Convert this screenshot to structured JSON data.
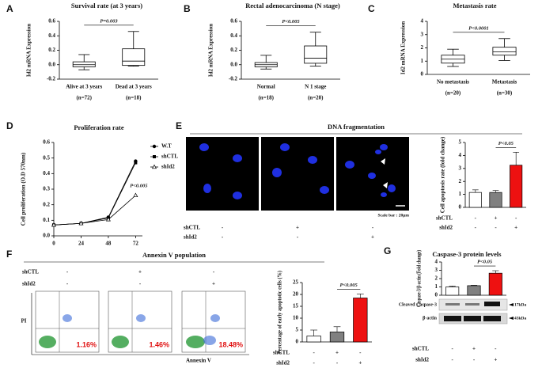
{
  "chart_data": [
    {
      "type": "box",
      "panel": "A",
      "title": "Survival rate (at 3 years)",
      "y_label": "Id2 mRNA Expression",
      "categories": [
        "Alive at 3 years",
        "Dead at 3 years"
      ],
      "group_sizes": [
        "(n=72)",
        "(n=18)"
      ],
      "values": [
        [
          -0.07,
          -0.03,
          0.0,
          0.04,
          0.14
        ],
        [
          -0.02,
          -0.01,
          0.05,
          0.22,
          0.46
        ]
      ],
      "annotation": "P=0.003",
      "ylim": [
        -0.2,
        0.6
      ],
      "yticks": [
        -0.2,
        {
          "value": 0,
          "label": "0.0"
        },
        0.2,
        0.4,
        0.6
      ],
      "color": "#000000"
    },
    {
      "type": "box",
      "panel": "B",
      "title": "Rectal adenocarcinoma (N stage)",
      "y_label": "Id2 mRNA Expression",
      "categories": [
        "Normal",
        "N 1 stage"
      ],
      "group_sizes": [
        "(n=18)",
        "(n=20)"
      ],
      "values": [
        [
          -0.06,
          -0.03,
          0.0,
          0.03,
          0.13
        ],
        [
          -0.02,
          0.02,
          0.09,
          0.26,
          0.45
        ]
      ],
      "annotation": "P<0.005",
      "ylim": [
        -0.2,
        0.6
      ],
      "yticks": [
        -0.2,
        {
          "value": 0,
          "label": "0.0"
        },
        0.2,
        0.4,
        0.6
      ],
      "color": "#000000"
    },
    {
      "type": "box",
      "panel": "C",
      "title": "Metastasis rate",
      "y_label": "Id2 mRNA Expression",
      "categories": [
        "No metastasis",
        "Metastasis"
      ],
      "group_sizes": [
        "(n=20)",
        "(n=30)"
      ],
      "values": [
        [
          0.6,
          0.85,
          1.15,
          1.45,
          1.9
        ],
        [
          1.05,
          1.45,
          1.7,
          2.05,
          2.7
        ]
      ],
      "annotation": "P<0.0001",
      "ylim": [
        0,
        4
      ],
      "yticks": [
        0,
        1,
        2,
        3,
        4
      ],
      "color": "#000000"
    },
    {
      "type": "line",
      "panel": "D",
      "title": "Proliferation rate",
      "y_label": "Cell proliferation (O.D 570nm)",
      "x": [
        0,
        24,
        48,
        72
      ],
      "xlim": [
        0,
        78
      ],
      "xticks": [
        0,
        24,
        48,
        72
      ],
      "ylim": [
        0,
        0.6
      ],
      "yticks": [
        {
          "value": 0,
          "label": "0.0"
        },
        0.1,
        0.2,
        0.3,
        0.4,
        0.5,
        0.6
      ],
      "series": [
        {
          "name": "W.T",
          "color": "#000000",
          "marker": "circle",
          "values": [
            0.07,
            0.08,
            0.12,
            0.48
          ]
        },
        {
          "name": "shCTL",
          "color": "#000000",
          "marker": "square",
          "values": [
            0.07,
            0.08,
            0.115,
            0.47
          ]
        },
        {
          "name": "shId2",
          "color": "#000000",
          "marker": "triangle",
          "values": [
            0.07,
            0.08,
            0.105,
            0.26
          ]
        }
      ],
      "annotation": "P<0.005"
    },
    {
      "type": "bar",
      "panel": "E",
      "title": "DNA fragmentation",
      "y_label": "Cell apoptosis rate (fold change)",
      "values": [
        1.15,
        1.15,
        3.25
      ],
      "errors": [
        0.2,
        0.15,
        1.0
      ],
      "colors": [
        "#ffffff",
        "#808080",
        "#ee1111"
      ],
      "ylim": [
        0,
        5
      ],
      "yticks": [
        0,
        1,
        2,
        3,
        4,
        5
      ],
      "annotation": "P<0.05",
      "conditions": [
        {
          "name": "shCTL",
          "values": [
            "-",
            "+",
            "-"
          ]
        },
        {
          "name": "shId2",
          "values": [
            "-",
            "-",
            "+"
          ]
        }
      ],
      "image_conditions": [
        {
          "name": "shCTL",
          "values": [
            "-",
            "+",
            "-"
          ]
        },
        {
          "name": "shId2",
          "values": [
            "-",
            "-",
            "+"
          ]
        }
      ],
      "scale_bar": "Scale bar : 20μm"
    },
    {
      "type": "bar",
      "panel": "F",
      "title": "Annexin V population",
      "y_label": "Percentage of early apoptotic cells (%)",
      "values": [
        2.5,
        4.2,
        18.5
      ],
      "errors": [
        2.5,
        2.2,
        1.7
      ],
      "colors": [
        "#ffffff",
        "#808080",
        "#ee1111"
      ],
      "ylim": [
        0,
        25
      ],
      "yticks": [
        0,
        5,
        10,
        15,
        20,
        25
      ],
      "annotation": "P<0.005",
      "conditions": [
        {
          "name": "shCTL",
          "values": [
            "-",
            "+",
            "-"
          ]
        },
        {
          "name": "shId2",
          "values": [
            "-",
            "-",
            "+"
          ]
        }
      ],
      "flow_conditions": [
        {
          "name": "shCTL",
          "values": [
            "-",
            "+",
            "-"
          ]
        },
        {
          "name": "shId2",
          "values": [
            "-",
            "-",
            "+"
          ]
        }
      ],
      "flow_percentages": [
        "1.16%",
        "1.46%",
        "18.48%"
      ],
      "flow_x_label": "Annexin V",
      "flow_y_label": "PI"
    },
    {
      "type": "bar",
      "panel": "G",
      "title": "Caspase-3 protein levels",
      "y_label": "Caspase-3/β-actin (Fold change)",
      "values": [
        1.0,
        1.15,
        2.65
      ],
      "errors": [
        0.1,
        0.05,
        0.3
      ],
      "colors": [
        "#ffffff",
        "#808080",
        "#ee1111"
      ],
      "ylim": [
        0,
        4
      ],
      "yticks": [
        0,
        1,
        2,
        3,
        4
      ],
      "annotation": "P<0.05",
      "conditions": [
        {
          "name": "shCTL",
          "values": [
            "-",
            "+",
            "-"
          ]
        },
        {
          "name": "shId2",
          "values": [
            "-",
            "-",
            "+"
          ]
        }
      ],
      "blot_labels": [
        "Cleaved Caspase-3",
        "β-actin"
      ],
      "blot_sizes": [
        "17kDa",
        "43kDa"
      ]
    }
  ]
}
